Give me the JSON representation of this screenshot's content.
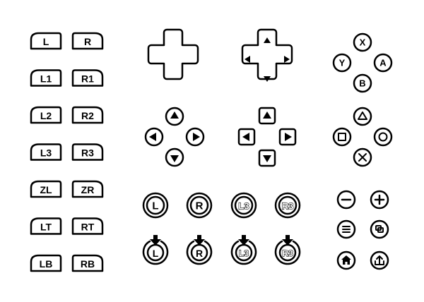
{
  "colors": {
    "ink": "#000000",
    "background": "#ffffff"
  },
  "shoulder_buttons": [
    {
      "left": "L",
      "right": "R"
    },
    {
      "left": "L1",
      "right": "R1"
    },
    {
      "left": "L2",
      "right": "R2"
    },
    {
      "left": "L3",
      "right": "R3"
    },
    {
      "left": "ZL",
      "right": "ZR"
    },
    {
      "left": "LT",
      "right": "RT"
    },
    {
      "left": "LB",
      "right": "RB"
    }
  ],
  "dpads": [
    {
      "name": "dpad-plain-icon"
    },
    {
      "name": "dpad-arrows-icon"
    },
    {
      "name": "round-arrow-buttons-icon"
    },
    {
      "name": "square-arrow-buttons-icon"
    }
  ],
  "face_buttons_letters": {
    "top": "X",
    "left": "Y",
    "right": "A",
    "bottom": "B"
  },
  "face_buttons_shapes": [
    "triangle-icon",
    "square-icon",
    "circle-icon",
    "cross-icon"
  ],
  "sticks": {
    "labels": [
      "L",
      "R",
      "L3",
      "R3"
    ],
    "press_labels": [
      "L",
      "R",
      "L3",
      "R3"
    ]
  },
  "system_buttons": [
    "minus-icon",
    "plus-icon",
    "menu-icon",
    "view-icon",
    "home-icon",
    "share-icon"
  ]
}
